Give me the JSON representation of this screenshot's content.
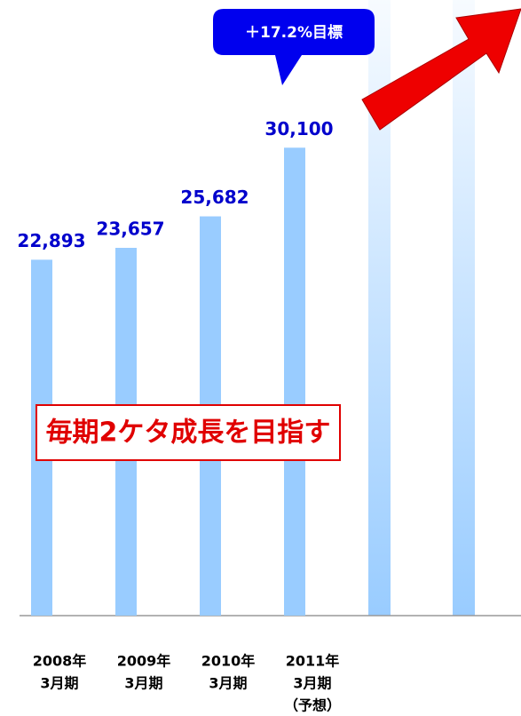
{
  "chart_data": {
    "type": "bar",
    "categories": [
      [
        "2008年",
        "3月期"
      ],
      [
        "2009年",
        "3月期"
      ],
      [
        "2010年",
        "3月期"
      ],
      [
        "2011年",
        "3月期",
        "（予想）"
      ]
    ],
    "values": [
      22893,
      23657,
      25682,
      30100
    ],
    "value_labels": [
      "22,893",
      "23,657",
      "25,682",
      "30,100"
    ],
    "color": "#99ccff",
    "label_color": "#0000cc",
    "ylim": [
      0,
      39600
    ],
    "annotations": [
      "＋17.2%目標",
      "毎期2ケタ成長を目指す"
    ]
  }
}
